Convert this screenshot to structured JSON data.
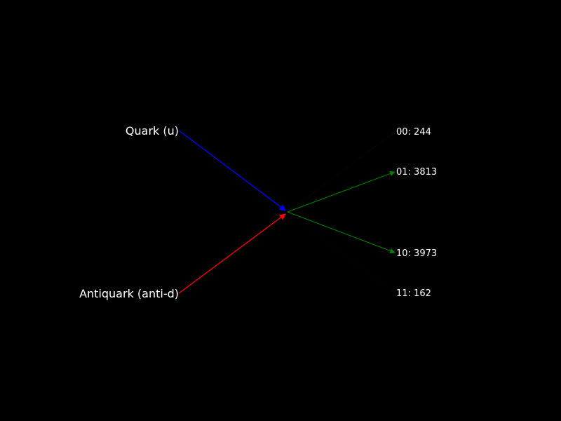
{
  "inputs": {
    "quark": {
      "label": "Quark (u)",
      "color": "#0000ff"
    },
    "antiquark": {
      "label": "Antiquark (anti-d)",
      "color": "#ff0000"
    }
  },
  "outcomes": [
    {
      "state": "00",
      "count": 244,
      "label": "00: 244"
    },
    {
      "state": "01",
      "count": 3813,
      "label": "01: 3813"
    },
    {
      "state": "10",
      "count": 3973,
      "label": "10: 3973"
    },
    {
      "state": "11",
      "count": 162,
      "label": "11: 162"
    }
  ],
  "colors": {
    "background": "#000000",
    "text": "#ffffff",
    "outcome_arrow": "#008000"
  }
}
